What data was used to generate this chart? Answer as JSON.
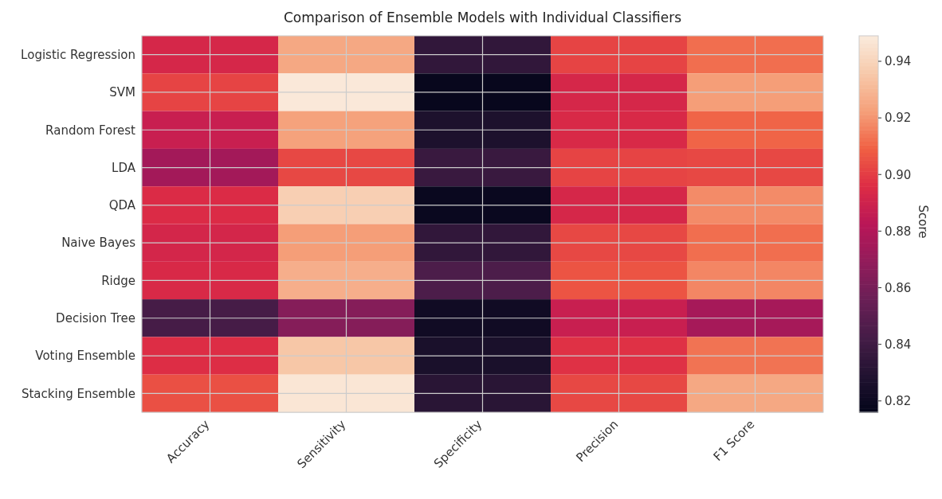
{
  "chart_data": {
    "type": "heatmap",
    "title": "Comparison of Ensemble Models with Individual Classifiers",
    "categories": [
      "Accuracy",
      "Sensitivity",
      "Specificity",
      "Precision",
      "F1 Score"
    ],
    "y_categories": [
      "Logistic Regression",
      "SVM",
      "Random Forest",
      "LDA",
      "QDA",
      "Naive Bayes",
      "Ridge",
      "Decision Tree",
      "Voting Ensemble",
      "Stacking Ensemble"
    ],
    "cells": [
      [
        0.893,
        0.925,
        0.835,
        0.902,
        0.912
      ],
      [
        0.902,
        0.948,
        0.818,
        0.893,
        0.922
      ],
      [
        0.888,
        0.923,
        0.827,
        0.894,
        0.91
      ],
      [
        0.875,
        0.903,
        0.838,
        0.902,
        0.903
      ],
      [
        0.895,
        0.938,
        0.819,
        0.893,
        0.918
      ],
      [
        0.892,
        0.922,
        0.835,
        0.903,
        0.912
      ],
      [
        0.894,
        0.927,
        0.845,
        0.906,
        0.917
      ],
      [
        0.843,
        0.865,
        0.822,
        0.888,
        0.876
      ],
      [
        0.896,
        0.935,
        0.826,
        0.897,
        0.913
      ],
      [
        0.905,
        0.947,
        0.832,
        0.903,
        0.925
      ]
    ],
    "clim": [
      0.816,
      0.949
    ],
    "cticks": [
      {
        "value": 0.82,
        "label": "0.82"
      },
      {
        "value": 0.84,
        "label": "0.84"
      },
      {
        "value": 0.86,
        "label": "0.86"
      },
      {
        "value": 0.88,
        "label": "0.88"
      },
      {
        "value": 0.9,
        "label": "0.90"
      },
      {
        "value": 0.92,
        "label": "0.92"
      },
      {
        "value": 0.94,
        "label": "0.94"
      }
    ],
    "clabel": "Score",
    "grid": true
  }
}
